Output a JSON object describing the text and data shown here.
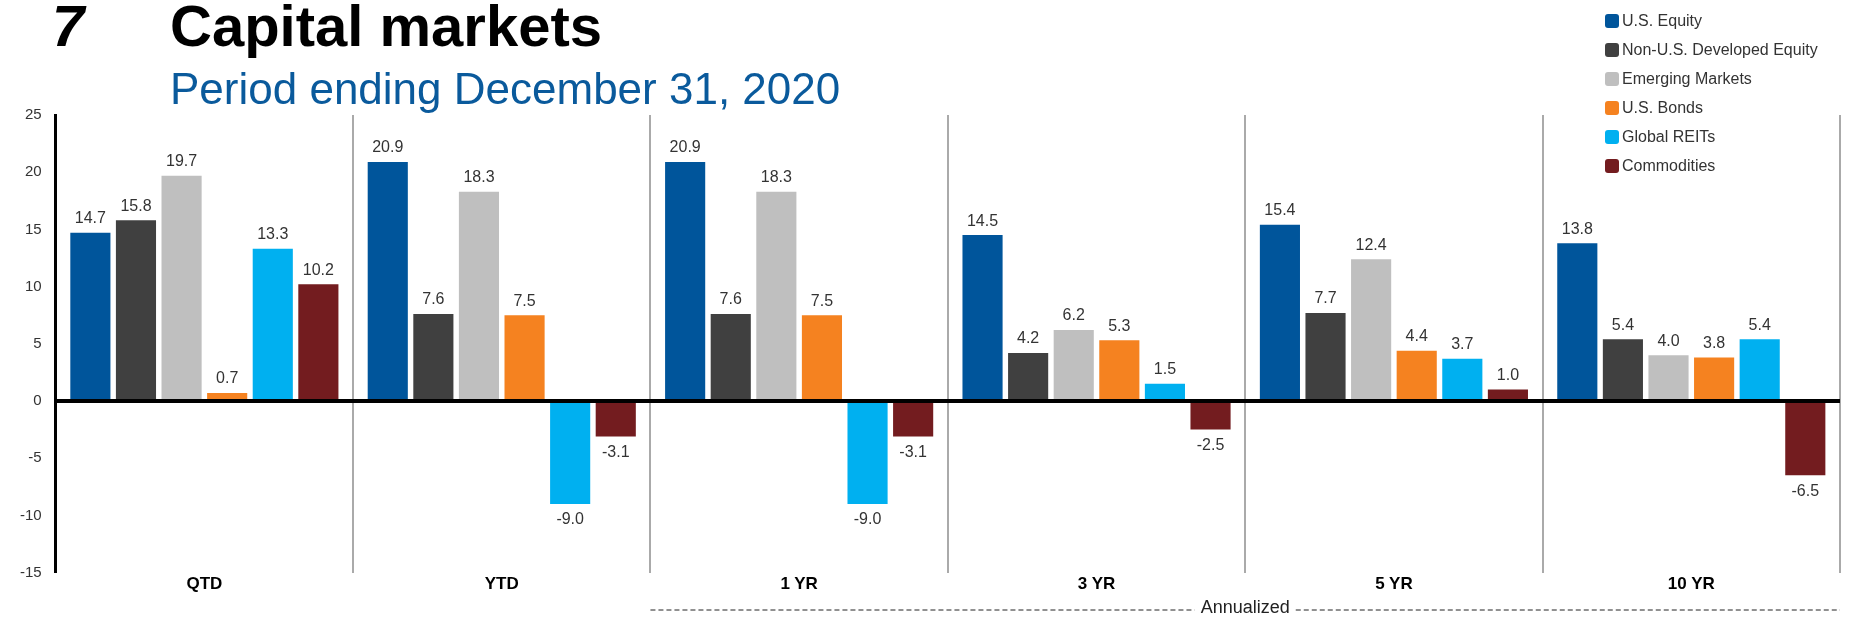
{
  "chart_data": {
    "type": "bar",
    "title": "Capital markets",
    "subtitle": "Period ending December 31, 2020",
    "categories": [
      "QTD",
      "YTD",
      "1 YR",
      "3 YR",
      "5 YR",
      "10 YR"
    ],
    "series": [
      {
        "name": "U.S. Equity",
        "color": "#00559b",
        "values": [
          14.7,
          20.9,
          20.9,
          14.5,
          15.4,
          13.8
        ],
        "value_labels": [
          "14.7",
          "20.9",
          "20.9",
          "14.5",
          "15.4",
          "13.8"
        ]
      },
      {
        "name": "Non-U.S. Developed Equity",
        "color": "#404040",
        "values": [
          15.8,
          7.6,
          7.6,
          4.2,
          7.7,
          5.4
        ],
        "value_labels": [
          "15.8",
          "7.6",
          "7.6",
          "4.2",
          "7.7",
          "5.4"
        ]
      },
      {
        "name": "Emerging Markets",
        "color": "#bfbfbf",
        "values": [
          19.7,
          18.3,
          18.3,
          6.2,
          12.4,
          4.0
        ],
        "value_labels": [
          "19.7",
          "18.3",
          "18.3",
          "6.2",
          "12.4",
          "4.0"
        ]
      },
      {
        "name": "U.S. Bonds",
        "color": "#f58220",
        "values": [
          0.7,
          7.5,
          7.5,
          5.3,
          4.4,
          3.8
        ],
        "value_labels": [
          "0.7",
          "7.5",
          "7.5",
          "5.3",
          "4.4",
          "3.8"
        ]
      },
      {
        "name": "Global REITs",
        "color": "#00b0f0",
        "values": [
          13.3,
          -9.0,
          -9.0,
          1.5,
          3.7,
          5.4
        ],
        "value_labels": [
          "13.3",
          "-9.0",
          "-9.0",
          "1.5",
          "3.7",
          "5.4"
        ]
      },
      {
        "name": "Commodities",
        "color": "#731c1f",
        "values": [
          10.2,
          -3.1,
          -3.1,
          -2.5,
          1.0,
          -6.5
        ],
        "value_labels": [
          "10.2",
          "-3.1",
          "-3.1",
          "-2.5",
          "1.0",
          "-6.5"
        ]
      }
    ],
    "ylim": [
      -15,
      25
    ],
    "yticks": [
      -15,
      -10,
      -5,
      0,
      5,
      10,
      15,
      20,
      25
    ],
    "grid": "x",
    "legend": "top right",
    "annotations": [
      "Annualized",
      "7"
    ]
  }
}
